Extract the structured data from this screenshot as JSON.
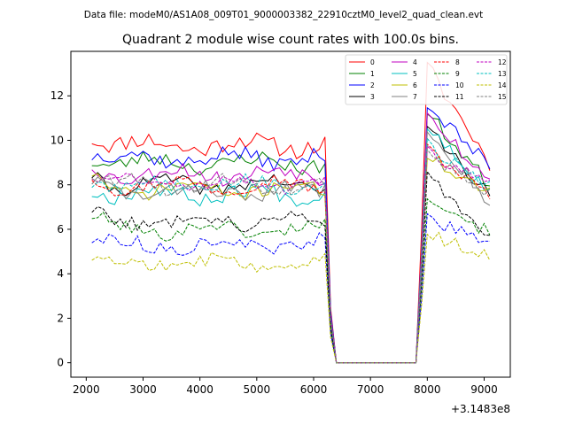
{
  "chart_data": {
    "type": "line",
    "suptitle": "Data file: modeM0/AS1A08_009T01_9000003382_22910cztM0_level2_quad_clean.evt",
    "title": "Quadrant 2 module wise count rates with 100.0s bins.",
    "xlabel": "",
    "ylabel": "",
    "x_offset_label": "+3.1483e8",
    "xlim": [
      1730,
      9460
    ],
    "ylim": [
      -0.65,
      14.0
    ],
    "xticks": [
      2000,
      3000,
      4000,
      5000,
      6000,
      7000,
      8000,
      9000
    ],
    "yticks": [
      0,
      2,
      4,
      6,
      8,
      10,
      12
    ],
    "x_start": 2100,
    "x_step": 100,
    "n_points": 71,
    "gap": {
      "fall_start": 6200,
      "zero_from": 6400,
      "zero_to": 7800,
      "rise_end": 8000
    },
    "legend": {
      "location": "upper-right",
      "columns": 4
    },
    "series": [
      {
        "name": "0",
        "color": "#ff0000",
        "style": "solid",
        "level": 9.8,
        "rise_peak": 13.3,
        "end": 9.0,
        "amp": 0.4,
        "seed": 11
      },
      {
        "name": "1",
        "color": "#008000",
        "style": "solid",
        "level": 9.0,
        "rise_peak": 11.2,
        "end": 8.0,
        "amp": 0.35,
        "seed": 23
      },
      {
        "name": "2",
        "color": "#0000ff",
        "style": "solid",
        "level": 9.2,
        "rise_peak": 11.6,
        "end": 8.8,
        "amp": 0.35,
        "seed": 37
      },
      {
        "name": "3",
        "color": "#000000",
        "style": "solid",
        "level": 8.0,
        "rise_peak": 10.6,
        "end": 7.5,
        "amp": 0.3,
        "seed": 41
      },
      {
        "name": "4",
        "color": "#c000c0",
        "style": "solid",
        "level": 8.5,
        "rise_peak": 11.4,
        "end": 8.0,
        "amp": 0.35,
        "seed": 53
      },
      {
        "name": "5",
        "color": "#00bfbf",
        "style": "solid",
        "level": 7.6,
        "rise_peak": 10.8,
        "end": 7.6,
        "amp": 0.35,
        "seed": 67
      },
      {
        "name": "6",
        "color": "#bfbf00",
        "style": "solid",
        "level": 7.8,
        "rise_peak": 9.3,
        "end": 7.6,
        "amp": 0.3,
        "seed": 71
      },
      {
        "name": "7",
        "color": "#808080",
        "style": "solid",
        "level": 7.7,
        "rise_peak": 10.7,
        "end": 7.2,
        "amp": 0.35,
        "seed": 83
      },
      {
        "name": "8",
        "color": "#ff0000",
        "style": "dashed",
        "level": 8.0,
        "rise_peak": 9.6,
        "end": 7.5,
        "amp": 0.3,
        "seed": 97
      },
      {
        "name": "9",
        "color": "#008000",
        "style": "dashed",
        "level": 6.0,
        "rise_peak": 7.6,
        "end": 5.8,
        "amp": 0.3,
        "seed": 101
      },
      {
        "name": "10",
        "color": "#0000ff",
        "style": "dashed",
        "level": 5.3,
        "rise_peak": 6.5,
        "end": 5.3,
        "amp": 0.3,
        "seed": 113
      },
      {
        "name": "11",
        "color": "#000000",
        "style": "dashed",
        "level": 6.4,
        "rise_peak": 8.5,
        "end": 5.6,
        "amp": 0.3,
        "seed": 127
      },
      {
        "name": "12",
        "color": "#c000c0",
        "style": "dashed",
        "level": 8.1,
        "rise_peak": 9.5,
        "end": 8.0,
        "amp": 0.3,
        "seed": 131
      },
      {
        "name": "13",
        "color": "#00bfbf",
        "style": "dashed",
        "level": 8.0,
        "rise_peak": 9.8,
        "end": 7.9,
        "amp": 0.3,
        "seed": 149
      },
      {
        "name": "14",
        "color": "#bfbf00",
        "style": "dashed",
        "level": 4.5,
        "rise_peak": 5.8,
        "end": 4.8,
        "amp": 0.3,
        "seed": 157
      },
      {
        "name": "15",
        "color": "#808080",
        "style": "dashed",
        "level": 8.0,
        "rise_peak": 9.4,
        "end": 7.6,
        "amp": 0.3,
        "seed": 163
      }
    ]
  }
}
